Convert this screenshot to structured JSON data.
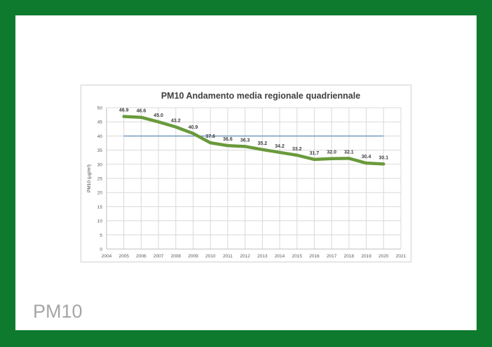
{
  "slide": {
    "caption": "PM10"
  },
  "colors": {
    "frame": "#0d7a2e",
    "series_line": "#6a9a3c",
    "threshold_line": "#7f9fc0",
    "grid": "#d9d9d9",
    "caption": "#a6a6a6"
  },
  "chart_data": {
    "type": "line",
    "title": "PM10 Andamento media regionale quadriennale",
    "xlabel": "",
    "ylabel": "PM10 (µg/m³)",
    "xlim": [
      2004,
      2021
    ],
    "ylim": [
      0,
      50
    ],
    "x_ticks": [
      "2004",
      "2005",
      "2006",
      "2007",
      "2008",
      "2009",
      "2010",
      "2011",
      "2012",
      "2013",
      "2014",
      "2015",
      "2016",
      "2017",
      "2018",
      "2019",
      "2020",
      "2021"
    ],
    "y_ticks": [
      "0",
      "5",
      "10",
      "15",
      "20",
      "25",
      "30",
      "35",
      "40",
      "45",
      "50"
    ],
    "grid": true,
    "legend": "none",
    "series": [
      {
        "x": [
          2005,
          2006,
          2007,
          2008,
          2009,
          2010,
          2011,
          2012,
          2013,
          2014,
          2015,
          2016,
          2017,
          2018,
          2019,
          2020
        ],
        "values": [
          46.9,
          46.6,
          45.0,
          43.2,
          40.9,
          37.6,
          36.6,
          36.3,
          35.2,
          34.2,
          33.2,
          31.7,
          32.0,
          32.1,
          30.4,
          30.1
        ],
        "labels": [
          "46.9",
          "46.6",
          "45.0",
          "43.2",
          "40.9",
          "37.6",
          "36.6",
          "36.3",
          "35.2",
          "34.2",
          "33.2",
          "31.7",
          "32.0",
          "32.1",
          "30.4",
          "30.1"
        ]
      }
    ],
    "threshold": {
      "value": 40,
      "x": [
        2005,
        2020
      ]
    }
  }
}
